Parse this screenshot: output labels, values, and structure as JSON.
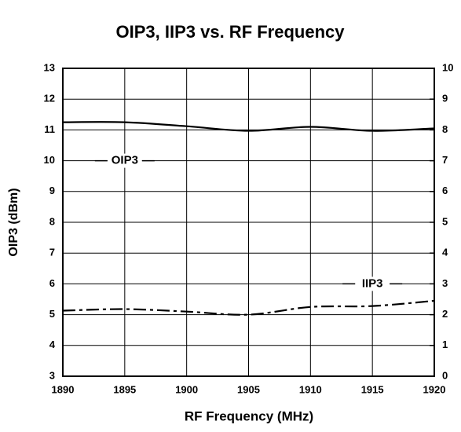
{
  "chart_data": {
    "type": "line",
    "title": "OIP3, IIP3 vs. RF Frequency",
    "x_label": "RF Frequency (MHz)",
    "y_label": "OIP3 (dBm)",
    "x": [
      1890,
      1895,
      1900,
      1905,
      1910,
      1915,
      1920
    ],
    "series": [
      {
        "name": "OIP3",
        "color": "#000000",
        "values": [
          11.25,
          11.25,
          11.12,
          10.97,
          11.1,
          10.97,
          11.05
        ]
      },
      {
        "name": "IIP3",
        "color": "#000000",
        "axis": "y2",
        "values": [
          2.13,
          2.18,
          2.1,
          2.0,
          2.25,
          2.28,
          2.45
        ]
      }
    ],
    "xlim": [
      1890,
      1920
    ],
    "xticks": [
      1890,
      1895,
      1900,
      1905,
      1910,
      1915,
      1920
    ],
    "ylim": [
      3,
      13
    ],
    "yticks": [
      3,
      4,
      5,
      6,
      7,
      8,
      9,
      10,
      11,
      12,
      13
    ],
    "y2lim": [
      0,
      10
    ],
    "y2ticks": [
      0,
      1,
      2,
      3,
      4,
      5,
      6,
      7,
      8,
      9,
      10
    ],
    "grid": true
  }
}
